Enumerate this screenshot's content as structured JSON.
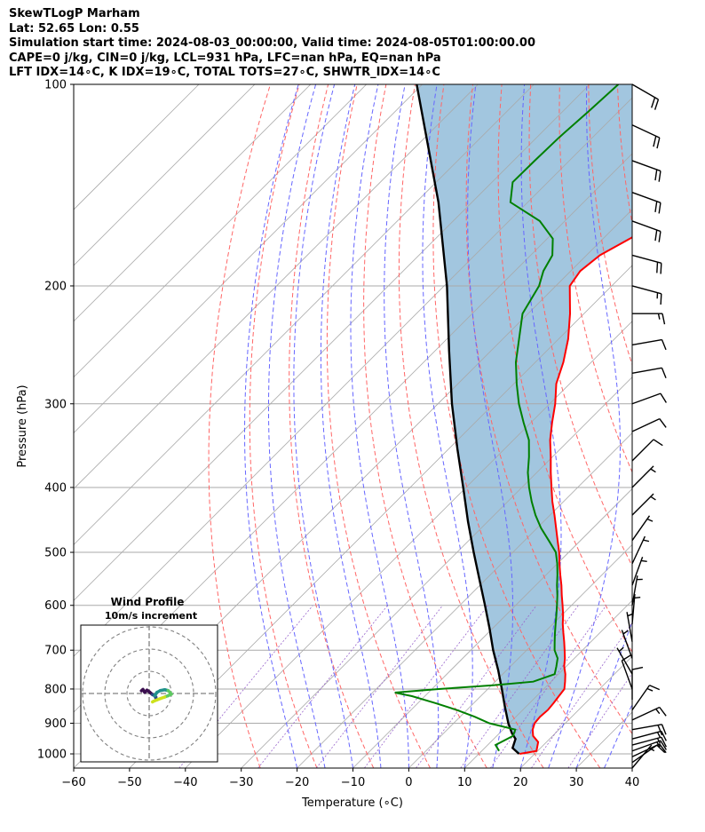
{
  "title_lines": [
    "SkewTLogP Marham",
    "Lat: 52.65   Lon: 0.55",
    "Simulation start time: 2024-08-03_00:00:00, Valid time: 2024-08-05T01:00:00.00",
    "CAPE=0 j/kg, CIN=0 j/kg, LCL=931 hPa, LFC=nan hPa, EQ=nan hPa",
    "LFT IDX=14∘C, K IDX=19∘C, TOTAL TOTS=27∘C, SHWTR_IDX=14∘C"
  ],
  "colors": {
    "temperature": "#ff0000",
    "dewpoint": "#008000",
    "parcel": "#000000",
    "shade": "#a2c6df",
    "isotherm": "#a9a9a9",
    "dry_adiabat": "#ff6666",
    "moist_adiabat": "#6666ff",
    "mixing_ratio": "#9966cc",
    "hodo_path": [
      "#3b0f4f",
      "#2c4a86",
      "#21918c",
      "#5ec962",
      "#cde11d"
    ]
  },
  "chart_data": {
    "type": "line",
    "chart_kind": "skew-T log-P diagram",
    "xlabel": "Temperature (∘C)",
    "ylabel": "Pressure (hPa)",
    "xlim": [
      -60,
      40
    ],
    "ylim": [
      1050,
      100
    ],
    "y_scale": "log",
    "x_ticks": [
      "−60",
      "−50",
      "−40",
      "−30",
      "−20",
      "−10",
      "0",
      "10",
      "20",
      "30",
      "40"
    ],
    "y_ticks": [
      "100",
      "200",
      "300",
      "400",
      "500",
      "600",
      "700",
      "800",
      "900",
      "1000"
    ],
    "grid": true,
    "series": [
      {
        "key": "temperature",
        "pressure": [
          1000,
          990,
          960,
          940,
          920,
          900,
          880,
          860,
          840,
          820,
          800,
          780,
          760,
          740,
          720,
          700,
          680,
          660,
          640,
          620,
          600,
          580,
          560,
          540,
          520,
          500,
          480,
          460,
          440,
          420,
          400,
          380,
          360,
          340,
          320,
          300,
          280,
          260,
          240,
          220,
          200,
          190,
          180,
          170,
          160,
          150,
          140,
          130,
          120,
          110,
          100
        ],
        "values": [
          17.3,
          19.8,
          18.5,
          16.5,
          15.3,
          14.5,
          14.3,
          14.5,
          14.3,
          14.0,
          13.7,
          12.5,
          11.2,
          9.6,
          8.3,
          6.8,
          5.2,
          3.5,
          1.8,
          0.2,
          -1.6,
          -3.5,
          -5.4,
          -7.5,
          -9.6,
          -11.7,
          -14.1,
          -16.6,
          -19.2,
          -22.0,
          -24.7,
          -27.5,
          -30.3,
          -33.4,
          -36.2,
          -39.0,
          -42.4,
          -45.0,
          -48.3,
          -52.5,
          -57.5,
          -58.3,
          -57.6,
          -55.2,
          -53.3,
          -51.9,
          -51.5,
          -50.8,
          -50.0,
          -49.4,
          -48.8
        ]
      },
      {
        "key": "dewpoint",
        "pressure": [
          990,
          970,
          940,
          920,
          900,
          880,
          860,
          840,
          820,
          810,
          800,
          790,
          780,
          760,
          740,
          720,
          700,
          680,
          660,
          640,
          620,
          600,
          580,
          560,
          540,
          520,
          500,
          480,
          460,
          440,
          420,
          400,
          380,
          360,
          340,
          320,
          300,
          280,
          260,
          240,
          220,
          200,
          190,
          180,
          170,
          160,
          150,
          140,
          130,
          120,
          110,
          100
        ],
        "values": [
          13.1,
          11.4,
          12.9,
          12.2,
          6.4,
          2.6,
          -1.8,
          -6.8,
          -12.3,
          -16.0,
          -8.8,
          0.3,
          6.8,
          9.3,
          8.2,
          7.0,
          5.0,
          3.5,
          2.0,
          0.5,
          -1.0,
          -2.6,
          -4.3,
          -6.2,
          -8.0,
          -10.0,
          -12.3,
          -15.7,
          -19.3,
          -22.6,
          -25.7,
          -28.7,
          -31.6,
          -34.2,
          -37.2,
          -41.3,
          -45.5,
          -49.5,
          -53.5,
          -57.1,
          -61.0,
          -63.0,
          -64.9,
          -66.1,
          -69.0,
          -74.5,
          -83.1,
          -86.3,
          -86.2,
          -86.0,
          -85.4,
          -84.9
        ]
      },
      {
        "key": "parcel",
        "pressure": [
          1000,
          980,
          950,
          931,
          900,
          850,
          800,
          750,
          700,
          650,
          600,
          550,
          500,
          450,
          400,
          350,
          300,
          250,
          200,
          150,
          100
        ],
        "values": [
          17.2,
          15.0,
          13.9,
          12.2,
          9.8,
          6.2,
          2.5,
          -1.5,
          -6.0,
          -10.5,
          -15.5,
          -21.0,
          -27.0,
          -33.5,
          -40.5,
          -48.5,
          -57.5,
          -67.5,
          -79.5,
          -96.0,
          -121.0
        ]
      }
    ],
    "wind_barbs": {
      "speed_unit": "knots (half barb 5, full barb 10)",
      "pressure": [
        1050,
        1030,
        1010,
        990,
        970,
        950,
        920,
        890,
        860,
        830,
        800,
        760,
        720,
        680,
        640,
        600,
        560,
        520,
        480,
        440,
        400,
        365,
        330,
        300,
        270,
        245,
        220,
        200,
        180,
        160,
        145,
        130,
        115,
        100
      ],
      "speed": [
        5,
        10,
        10,
        15,
        15,
        15,
        20,
        15,
        15,
        10,
        10,
        5,
        5,
        5,
        5,
        5,
        5,
        5,
        5,
        5,
        5,
        10,
        10,
        10,
        10,
        10,
        15,
        15,
        20,
        20,
        20,
        20,
        20,
        20
      ],
      "direction": [
        220,
        235,
        245,
        250,
        255,
        255,
        260,
        245,
        215,
        180,
        160,
        150,
        160,
        170,
        185,
        190,
        200,
        205,
        215,
        225,
        225,
        225,
        245,
        250,
        260,
        260,
        270,
        285,
        285,
        290,
        290,
        290,
        295,
        300
      ]
    },
    "hodograph": {
      "title": "Wind Profile",
      "subtitle": "10m/s increment",
      "ring_spacing": "10 m/s",
      "u": [
        -3.5,
        -2.8,
        -2.0,
        -1.0,
        0.0,
        1.5,
        2.5,
        3.0,
        3.0,
        2.5,
        3.5,
        5.0,
        7.0,
        8.5,
        9.5,
        10.0,
        8.5,
        7.0,
        5.0,
        3.5,
        2.0,
        1.5
      ],
      "v": [
        1.2,
        1.8,
        0.5,
        1.5,
        0.8,
        -0.5,
        -1.0,
        -1.6,
        -2.0,
        -1.0,
        0.5,
        1.3,
        1.7,
        1.3,
        0.4,
        -0.3,
        -1.0,
        -1.6,
        -2.3,
        -2.9,
        -3.5,
        -3.8
      ]
    }
  }
}
